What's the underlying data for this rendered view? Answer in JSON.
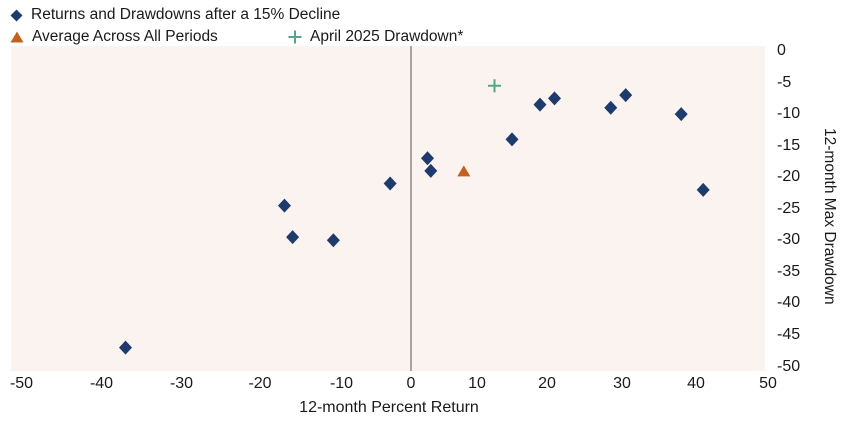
{
  "legend": {
    "items": [
      {
        "label": "Returns and Drawdowns after a 15% Decline",
        "marker": "diamond",
        "color": "#1f3a6c"
      },
      {
        "label": "Average Across All Periods",
        "marker": "triangle",
        "color": "#c2611f"
      },
      {
        "label": "April 2025 Drawdown*",
        "marker": "plus",
        "color": "#56a389"
      }
    ]
  },
  "chart_data": {
    "type": "scatter",
    "xlabel": "12-month Percent Return",
    "ylabel": "12-month Max Drawdown",
    "xlim": [
      -50,
      50
    ],
    "ylim": [
      -50,
      0
    ],
    "x_ticks": [
      -50,
      -40,
      -30,
      -20,
      -10,
      0,
      10,
      20,
      30,
      40,
      50
    ],
    "y_ticks": [
      0,
      -5,
      -10,
      -15,
      -20,
      -25,
      -30,
      -35,
      -40,
      -45,
      -50
    ],
    "grid": false,
    "legend_position": "top-left",
    "plot_background": "#faf3f0",
    "zero_line": {
      "x": 0,
      "color": "#8c8c8c"
    },
    "series": [
      {
        "name": "Returns and Drawdowns after a 15% Decline",
        "marker": "diamond",
        "color": "#1f3a6c",
        "points": [
          [
            -37,
            -47
          ],
          [
            -17,
            -24.5
          ],
          [
            -16,
            -29.5
          ],
          [
            -11,
            -30
          ],
          [
            -3,
            -21
          ],
          [
            2.5,
            -17
          ],
          [
            3,
            -19
          ],
          [
            15,
            -14
          ],
          [
            19,
            -8.5
          ],
          [
            21,
            -7.5
          ],
          [
            28.5,
            -9
          ],
          [
            30.5,
            -7
          ],
          [
            38,
            -10
          ],
          [
            41,
            -22
          ]
        ]
      },
      {
        "name": "Average Across All Periods",
        "marker": "triangle",
        "color": "#c2611f",
        "points": [
          [
            8,
            -19
          ]
        ]
      },
      {
        "name": "April 2025 Drawdown*",
        "marker": "plus",
        "color": "#56a389",
        "points": [
          [
            12.5,
            -5.5
          ]
        ]
      }
    ]
  }
}
